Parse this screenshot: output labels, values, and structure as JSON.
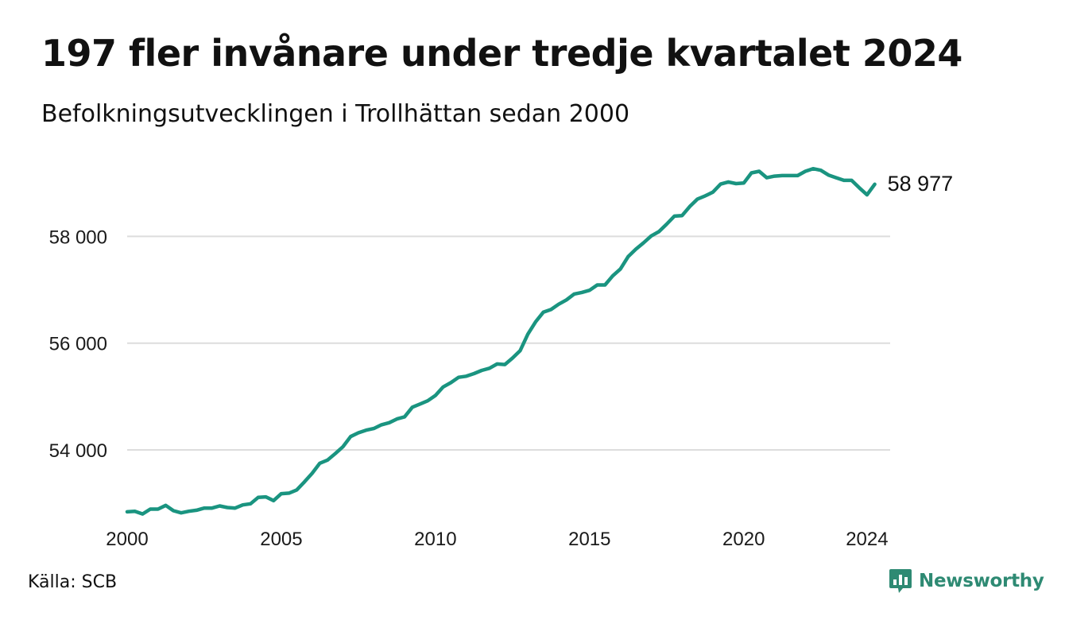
{
  "header": {
    "title": "197 fler invånare under tredje kvartalet 2024",
    "subtitle": "Befolkningsutvecklingen i Trollhättan sedan 2000"
  },
  "footer": {
    "source": "Källa: SCB",
    "brand": "Newsworthy"
  },
  "colors": {
    "line": "#1a9480",
    "grid": "#dddddd",
    "brand": "#2e8a73"
  },
  "icons": {
    "brand_logo": "bar-chart-speech-bubble-icon"
  },
  "chart_data": {
    "type": "line",
    "title": "197 fler invånare under tredje kvartalet 2024",
    "subtitle": "Befolkningsutvecklingen i Trollhättan sedan 2000",
    "xlabel": "",
    "ylabel": "",
    "x_ticks": [
      2000,
      2005,
      2010,
      2015,
      2020,
      2024
    ],
    "y_ticks": [
      {
        "value": 54000,
        "label": "54 000"
      },
      {
        "value": 56000,
        "label": "56 000"
      },
      {
        "value": 58000,
        "label": "58 000"
      }
    ],
    "xlim": [
      2000,
      2024.75
    ],
    "ylim": [
      52600,
      59600
    ],
    "grid": "horizontal",
    "end_label": "58 977",
    "series": [
      {
        "x_start": 2000,
        "x_step": 0.25,
        "values": [
          52840,
          52850,
          52800,
          52890,
          52890,
          52960,
          52860,
          52820,
          52850,
          52870,
          52910,
          52910,
          52950,
          52920,
          52910,
          52970,
          52990,
          53110,
          53120,
          53050,
          53180,
          53190,
          53250,
          53400,
          53560,
          53750,
          53810,
          53930,
          54060,
          54250,
          54320,
          54370,
          54400,
          54470,
          54510,
          54580,
          54620,
          54800,
          54860,
          54920,
          55020,
          55180,
          55260,
          55360,
          55380,
          55430,
          55490,
          55530,
          55610,
          55600,
          55720,
          55860,
          56170,
          56400,
          56580,
          56630,
          56730,
          56810,
          56920,
          56950,
          56990,
          57090,
          57090,
          57260,
          57390,
          57620,
          57760,
          57880,
          58010,
          58090,
          58230,
          58380,
          58390,
          58560,
          58700,
          58760,
          58830,
          58980,
          59020,
          58990,
          59000,
          59190,
          59220,
          59100,
          59130,
          59140,
          59140,
          59140,
          59220,
          59270,
          59240,
          59150,
          59100,
          59050,
          59050,
          58910,
          58780,
          58977
        ]
      }
    ]
  }
}
